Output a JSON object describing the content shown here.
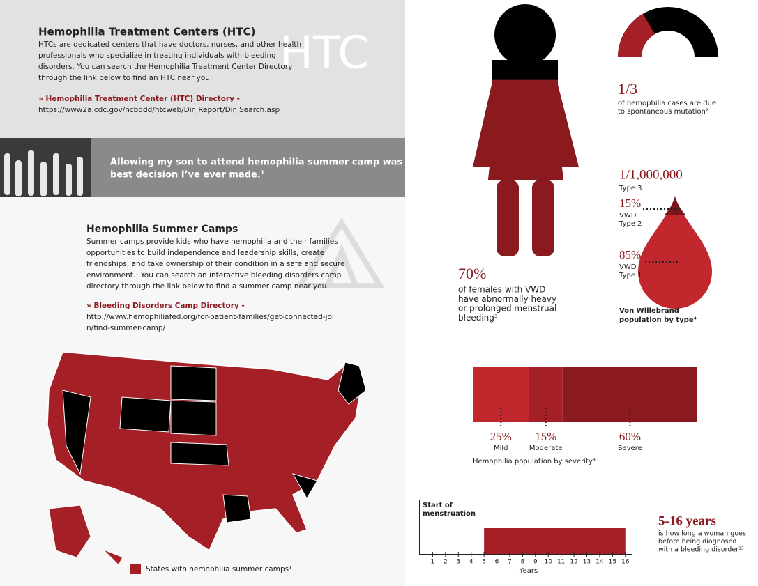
{
  "htc": {
    "title": "Hemophilia Treatment Centers (HTC)",
    "body": [
      "HTCs are dedicated centers that have doctors, nurses, and other health",
      "professionals who specialize in treating individuals with bleeding",
      "disorders. You can search the Hemophilia Treatment Center Directory",
      "through the link below to find an HTC near you."
    ],
    "link_label": "» Hemophilia Treatment Center (HTC) Directory -",
    "link_url": "https://www2a.cdc.gov/ncbddd/htcweb/Dir_Report/Dir_Search.asp",
    "watermark": "HTC"
  },
  "quote": [
    "Allowing my son to attend hemophilia summer camp was the",
    "best decision I’ve ever made.¹"
  ],
  "camps": {
    "title": "Hemophilia Summer Camps",
    "body": [
      "Summer camps provide kids who have hemophilia and their families",
      "opportunities to build independence and leadership skills, create",
      "friendships, and take ownership of their condition in a safe and secure",
      "environment.¹ You can search an interactive bleeding disorders camp",
      "directory through the link below to find a summer camp near you."
    ],
    "link_label": "» Bleeding Disorders Camp Directory -",
    "link_url": [
      "http://www.hemophiliafed.org/for-patient-families/get-connected-joi",
      "n/find-summer-camp/"
    ]
  },
  "map": {
    "legend": "States with hemophilia summer camps¹"
  },
  "mutation": {
    "value": 0.3333,
    "label": "1/3",
    "text": [
      "of hemophilia cases are due",
      "to spontaneous mutation²"
    ]
  },
  "menstrual": {
    "value": 70,
    "label": "70%",
    "text": [
      "of females with VWD",
      "have abnormally heavy",
      "or prolonged menstrual",
      "bleeding³"
    ]
  },
  "vwd": {
    "type3_value": "1/1,000,000",
    "type3_name": "Type 3",
    "type2_value": "15%",
    "type2_name": [
      "VWD",
      "Type 2"
    ],
    "type1_value": "85%",
    "type1_name": [
      "VWD",
      "Type 1"
    ],
    "caption": [
      "Von Willebrand",
      "population by type⁴"
    ]
  },
  "severity": {
    "segments": [
      {
        "name": "Mild",
        "value": 25,
        "label": "25%"
      },
      {
        "name": "Moderate",
        "value": 15,
        "label": "15%"
      },
      {
        "name": "Severe",
        "value": 60,
        "label": "60%"
      }
    ],
    "caption": "Hemophilia population by severity³"
  },
  "timeline": {
    "axis_title": [
      "Start of",
      "menstruation"
    ],
    "x_label": "Years",
    "xlim": [
      0,
      16.5
    ],
    "ticks": [
      1,
      2,
      3,
      4,
      5,
      6,
      7,
      8,
      9,
      10,
      11,
      12,
      13,
      14,
      15,
      16
    ],
    "range": [
      5,
      16
    ],
    "headline": "5-16 years",
    "text": [
      "is how long a woman goes",
      "before being diagnosed",
      "with a bleeding disorder¹³"
    ]
  }
}
